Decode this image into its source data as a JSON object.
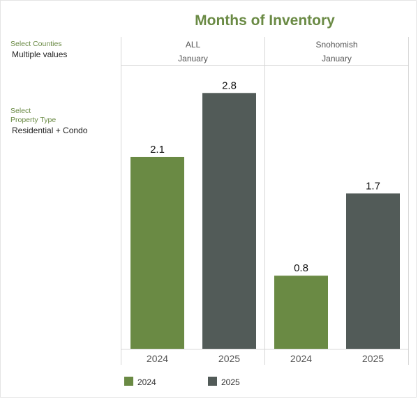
{
  "filters": {
    "counties": {
      "label": "Select Counties",
      "value": "Multiple values"
    },
    "property": {
      "label_line1": "Select",
      "label_line2": "Property Type",
      "value": "Residential + Condo"
    }
  },
  "colors": {
    "y2024": "#6a8a44",
    "y2025": "#525b58",
    "accent": "#6a8a44"
  },
  "chart_data": {
    "type": "bar",
    "title": "Months of Inventory",
    "panels": [
      {
        "name": "ALL",
        "month": "January",
        "categories": [
          "2024",
          "2025"
        ],
        "values": [
          2.1,
          2.8
        ]
      },
      {
        "name": "Snohomish",
        "month": "January",
        "categories": [
          "2024",
          "2025"
        ],
        "values": [
          0.8,
          1.7
        ]
      }
    ],
    "ylim": [
      0,
      3.1
    ],
    "legend": [
      {
        "name": "2024"
      },
      {
        "name": "2025"
      }
    ],
    "legend_position": "bottom-left"
  }
}
